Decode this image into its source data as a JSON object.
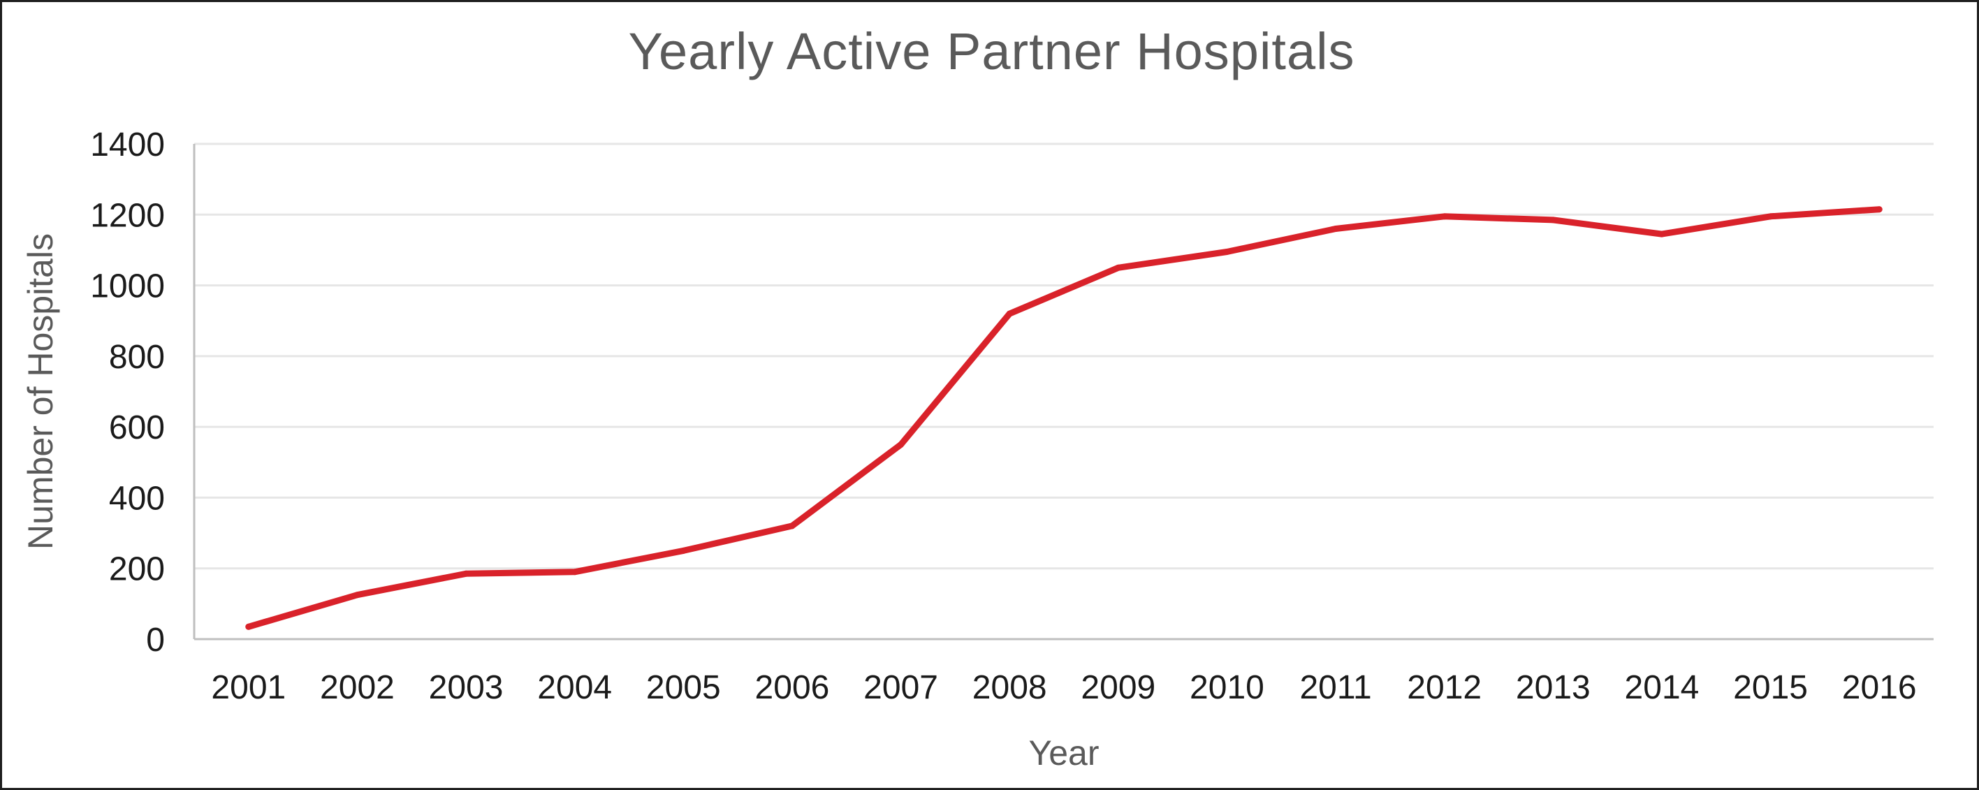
{
  "chart_data": {
    "type": "line",
    "title": "Yearly Active Partner Hospitals",
    "xlabel": "Year",
    "ylabel": "Number of Hospitals",
    "x": [
      "2001",
      "2002",
      "2003",
      "2004",
      "2005",
      "2006",
      "2007",
      "2008",
      "2009",
      "2010",
      "2011",
      "2012",
      "2013",
      "2014",
      "2015",
      "2016"
    ],
    "series": [
      {
        "values": [
          35,
          125,
          185,
          190,
          250,
          320,
          550,
          920,
          1050,
          1095,
          1160,
          1195,
          1185,
          1145,
          1195,
          1215
        ],
        "color": "#d9222a"
      }
    ],
    "ylim": [
      0,
      1400
    ],
    "yticks": [
      0,
      200,
      400,
      600,
      800,
      1000,
      1200,
      1400
    ],
    "grid": true,
    "legend": "none"
  },
  "colors": {
    "gridline": "#e6e6e6",
    "axis": "#bfbfbf",
    "line": "#d9222a"
  }
}
